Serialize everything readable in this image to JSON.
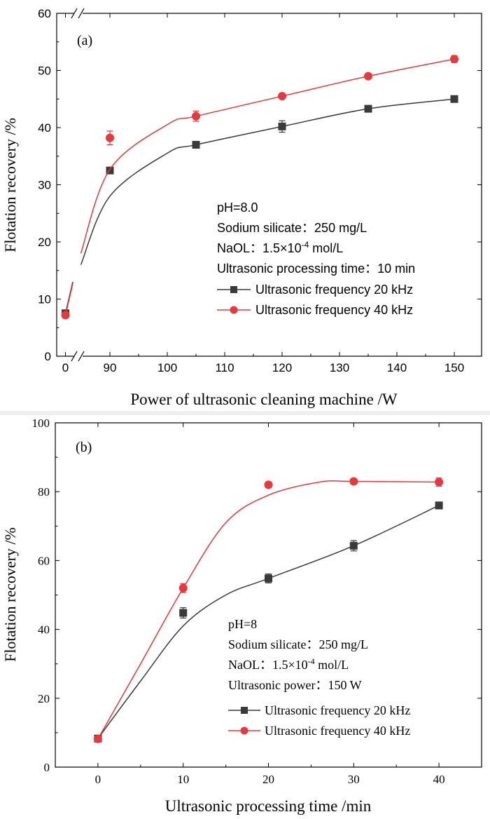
{
  "chart_data": [
    {
      "type": "line",
      "panel_label": "(a)",
      "xlabel": "Power of ultrasonic cleaning machine /W",
      "ylabel": "Flotation recovery /%",
      "xlim": [
        80,
        155
      ],
      "ylim": [
        0,
        60
      ],
      "x_break": true,
      "x_ticks": [
        "0",
        "90",
        "100",
        "110",
        "120",
        "130",
        "140",
        "150"
      ],
      "y_ticks": [
        "0",
        "10",
        "20",
        "30",
        "40",
        "50",
        "60"
      ],
      "annotations": [
        "pH=8.0",
        "Sodium silicate：250 mg/L",
        "NaOL：1.5×10-4 mol/L",
        "Ultrasonic processing time：10 min"
      ],
      "series": [
        {
          "name": "Ultrasonic frequency 20 kHz",
          "color": "#3a3a3a",
          "marker": "square",
          "x_labels": [
            "0",
            "90",
            "105",
            "120",
            "135",
            "150"
          ],
          "values": [
            7.5,
            32.5,
            37.0,
            40.2,
            43.3,
            45.0
          ],
          "errors": [
            0.6,
            0.5,
            0.6,
            1.0,
            0.5,
            0.4
          ]
        },
        {
          "name": "Ultrasonic frequency 40 kHz",
          "color": "#e8383b",
          "marker": "circle",
          "x_labels": [
            "0",
            "90",
            "105",
            "120",
            "135",
            "150"
          ],
          "values": [
            7.2,
            38.2,
            42.0,
            45.5,
            49.0,
            52.0
          ],
          "errors": [
            0.5,
            1.2,
            0.9,
            0.4,
            0.4,
            0.6
          ]
        }
      ]
    },
    {
      "type": "line",
      "panel_label": "(b)",
      "xlabel": "Ultrasonic processing time /min",
      "ylabel": "Flotation recovery /%",
      "xlim": [
        -5,
        45
      ],
      "ylim": [
        0,
        100
      ],
      "x_ticks": [
        "0",
        "10",
        "20",
        "30",
        "40"
      ],
      "y_ticks": [
        "0",
        "20",
        "40",
        "60",
        "80",
        "100"
      ],
      "annotations": [
        "pH=8",
        "Sodium silicate：250 mg/L",
        "NaOL：1.5×10-4 mol/L",
        "Ultrasonic power：150 W"
      ],
      "series": [
        {
          "name": "Ultrasonic frequency 20 kHz",
          "color": "#3a3a3a",
          "marker": "square",
          "x": [
            0,
            10,
            20,
            30,
            40
          ],
          "values": [
            8.3,
            44.8,
            54.8,
            64.3,
            76.0
          ],
          "errors": [
            0.5,
            1.5,
            1.3,
            1.5,
            1.0
          ]
        },
        {
          "name": "Ultrasonic frequency 40 kHz",
          "color": "#e8383b",
          "marker": "circle",
          "x": [
            0,
            10,
            20,
            30,
            40
          ],
          "values": [
            8.2,
            52.0,
            82.0,
            83.0,
            82.8
          ],
          "errors": [
            0.5,
            1.3,
            0.8,
            0.8,
            1.2
          ]
        }
      ]
    }
  ]
}
